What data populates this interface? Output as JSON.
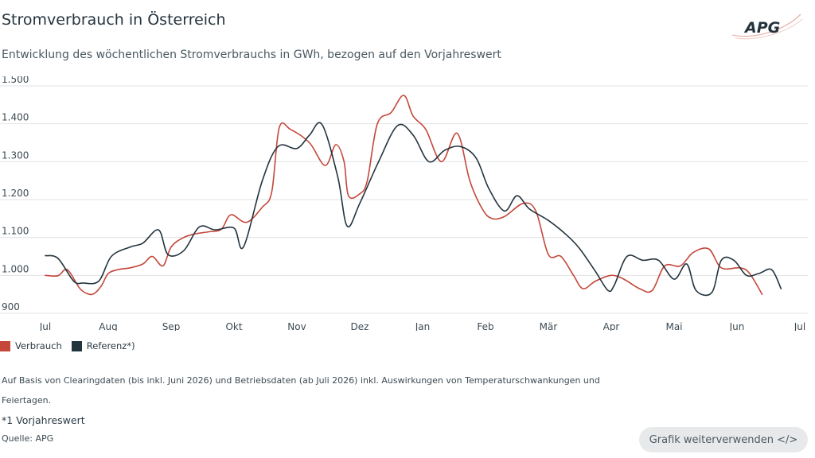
{
  "header": {
    "title": "Stromverbrauch in Österreich",
    "subtitle": "Entwicklung des wöchentlichen Stromverbrauchs in GWh, bezogen auf den Vorjahreswert",
    "logo_text": "APG"
  },
  "colors": {
    "verbrauch": "#c4473a",
    "referenz": "#24343e",
    "grid": "#e1e3e5"
  },
  "chart_data": {
    "type": "line",
    "title": "Stromverbrauch in Österreich",
    "subtitle": "Entwicklung des wöchentlichen Stromverbrauchs in GWh, bezogen auf den Vorjahreswert",
    "ylim": [
      900,
      1500
    ],
    "yticks": [
      900,
      1000,
      1100,
      1200,
      1300,
      1400,
      1500
    ],
    "ytick_labels": [
      "900",
      "1.000",
      "1.100",
      "1.200",
      "1.300",
      "1.400",
      "1.500"
    ],
    "xticks": [
      0,
      1,
      2,
      3,
      4,
      5,
      6,
      7,
      8,
      9,
      10,
      11,
      12
    ],
    "xtick_labels": [
      "Jul",
      "Aug",
      "Sep",
      "Okt",
      "Nov",
      "Dez",
      "Jan",
      "Feb",
      "Mär",
      "Apr",
      "Mai",
      "Jun",
      "Jul"
    ],
    "grid": true,
    "legend_position": "bottom-left",
    "series": [
      {
        "name": "Verbrauch",
        "points": [
          [
            0,
            1000
          ],
          [
            0.2,
            999
          ],
          [
            0.35,
            1015
          ],
          [
            0.55,
            965
          ],
          [
            0.7,
            950
          ],
          [
            0.8,
            955
          ],
          [
            0.9,
            975
          ],
          [
            1.0,
            1005
          ],
          [
            1.15,
            1015
          ],
          [
            1.35,
            1020
          ],
          [
            1.55,
            1030
          ],
          [
            1.7,
            1050
          ],
          [
            1.87,
            1025
          ],
          [
            2.0,
            1075
          ],
          [
            2.2,
            1100
          ],
          [
            2.4,
            1110
          ],
          [
            2.6,
            1115
          ],
          [
            2.8,
            1122
          ],
          [
            2.95,
            1160
          ],
          [
            3.2,
            1140
          ],
          [
            3.45,
            1180
          ],
          [
            3.6,
            1220
          ],
          [
            3.72,
            1390
          ],
          [
            3.9,
            1385
          ],
          [
            4.2,
            1350
          ],
          [
            4.45,
            1290
          ],
          [
            4.62,
            1345
          ],
          [
            4.75,
            1300
          ],
          [
            4.82,
            1210
          ],
          [
            5.0,
            1215
          ],
          [
            5.12,
            1250
          ],
          [
            5.28,
            1400
          ],
          [
            5.5,
            1430
          ],
          [
            5.7,
            1475
          ],
          [
            5.85,
            1420
          ],
          [
            6.05,
            1385
          ],
          [
            6.3,
            1300
          ],
          [
            6.55,
            1375
          ],
          [
            6.75,
            1250
          ],
          [
            6.95,
            1175
          ],
          [
            7.1,
            1150
          ],
          [
            7.3,
            1155
          ],
          [
            7.6,
            1190
          ],
          [
            7.8,
            1170
          ],
          [
            8.0,
            1055
          ],
          [
            8.2,
            1050
          ],
          [
            8.4,
            1000
          ],
          [
            8.55,
            965
          ],
          [
            8.75,
            985
          ],
          [
            9.0,
            1000
          ],
          [
            9.2,
            990
          ],
          [
            9.45,
            965
          ],
          [
            9.65,
            960
          ],
          [
            9.85,
            1025
          ],
          [
            10.1,
            1025
          ],
          [
            10.3,
            1060
          ],
          [
            10.55,
            1070
          ],
          [
            10.75,
            1020
          ],
          [
            11.05,
            1020
          ],
          [
            11.2,
            1005
          ],
          [
            11.4,
            950
          ]
        ]
      },
      {
        "name": "Referenz*)",
        "points": [
          [
            0,
            1052
          ],
          [
            0.2,
            1045
          ],
          [
            0.45,
            985
          ],
          [
            0.6,
            980
          ],
          [
            0.85,
            985
          ],
          [
            1.05,
            1050
          ],
          [
            1.35,
            1075
          ],
          [
            1.55,
            1085
          ],
          [
            1.8,
            1120
          ],
          [
            1.95,
            1055
          ],
          [
            2.2,
            1065
          ],
          [
            2.45,
            1128
          ],
          [
            2.7,
            1120
          ],
          [
            3.0,
            1125
          ],
          [
            3.15,
            1075
          ],
          [
            3.45,
            1250
          ],
          [
            3.7,
            1340
          ],
          [
            4.0,
            1335
          ],
          [
            4.2,
            1370
          ],
          [
            4.4,
            1398
          ],
          [
            4.65,
            1260
          ],
          [
            4.8,
            1130
          ],
          [
            5.0,
            1190
          ],
          [
            5.3,
            1300
          ],
          [
            5.6,
            1395
          ],
          [
            5.85,
            1370
          ],
          [
            6.1,
            1300
          ],
          [
            6.35,
            1330
          ],
          [
            6.6,
            1340
          ],
          [
            6.85,
            1310
          ],
          [
            7.05,
            1230
          ],
          [
            7.3,
            1170
          ],
          [
            7.5,
            1210
          ],
          [
            7.7,
            1175
          ],
          [
            8.0,
            1145
          ],
          [
            8.3,
            1105
          ],
          [
            8.5,
            1070
          ],
          [
            8.75,
            1010
          ],
          [
            8.95,
            960
          ],
          [
            9.05,
            975
          ],
          [
            9.25,
            1050
          ],
          [
            9.5,
            1040
          ],
          [
            9.75,
            1040
          ],
          [
            10.0,
            990
          ],
          [
            10.2,
            1030
          ],
          [
            10.35,
            960
          ],
          [
            10.6,
            955
          ],
          [
            10.75,
            1040
          ],
          [
            10.95,
            1040
          ],
          [
            11.15,
            1000
          ],
          [
            11.35,
            1005
          ],
          [
            11.55,
            1015
          ],
          [
            11.7,
            965
          ]
        ]
      }
    ]
  },
  "legend": {
    "items": [
      {
        "label": "Verbrauch"
      },
      {
        "label": "Referenz*)"
      }
    ]
  },
  "footer": {
    "note_main": "Auf Basis von Clearingdaten (bis inkl. Juni 2026) und Betriebsdaten (ab Juli 2026) inkl. Auswirkungen von Temperaturschwankungen und Feiertagen.",
    "note_ref": "*1 Vorjahreswert",
    "source": "Quelle: APG",
    "reuse_button": "Grafik weiterverwenden </>"
  }
}
